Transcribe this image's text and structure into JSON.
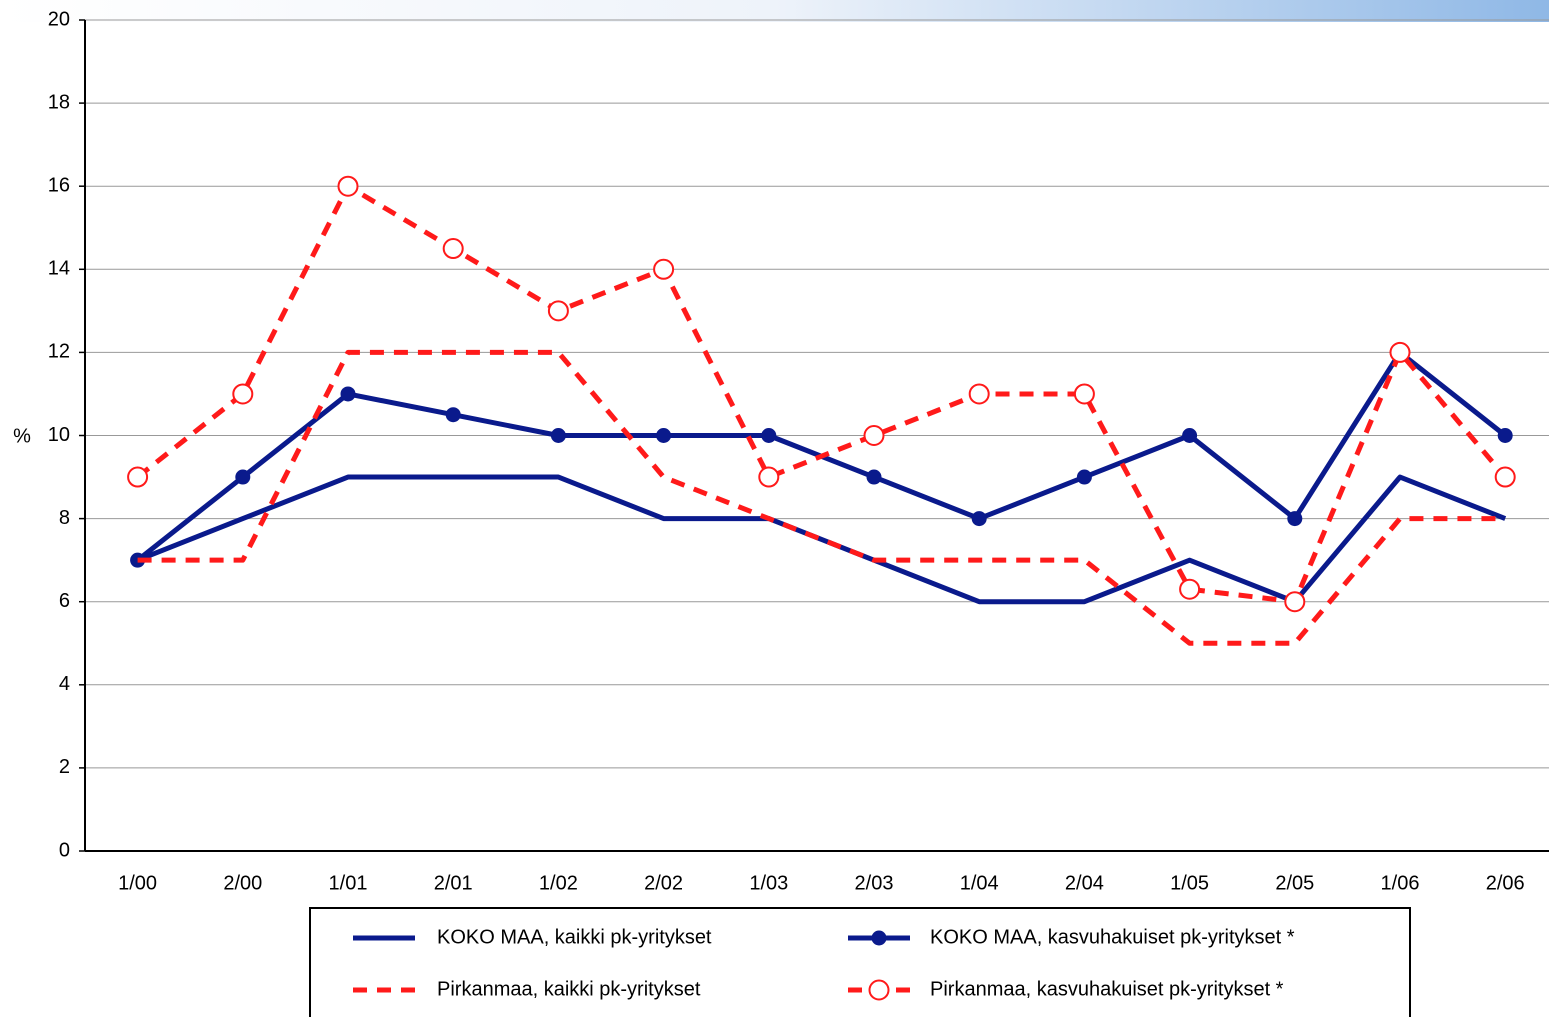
{
  "chart_data": {
    "type": "line",
    "ylabel": "%",
    "categories": [
      "1/00",
      "2/00",
      "1/01",
      "2/01",
      "1/02",
      "2/02",
      "1/03",
      "2/03",
      "1/04",
      "2/04",
      "1/05",
      "2/05",
      "1/06",
      "2/06"
    ],
    "series": [
      {
        "name": "KOKO MAA, kaikki pk-yritykset",
        "color": "#0a1a8c",
        "dash": false,
        "marker": "none",
        "values": [
          7,
          8,
          9,
          9,
          9,
          8,
          8,
          7,
          6,
          6,
          7,
          6,
          9,
          8
        ]
      },
      {
        "name": "KOKO MAA, kasvuhakuiset pk-yritykset *",
        "color": "#0a1a8c",
        "dash": false,
        "marker": "filled",
        "values": [
          7,
          9,
          11,
          10.5,
          10,
          10,
          10,
          9,
          8,
          9,
          10,
          8,
          12,
          10
        ]
      },
      {
        "name": "Pirkanmaa, kaikki pk-yritykset",
        "color": "#ff1a1a",
        "dash": true,
        "marker": "none",
        "values": [
          7,
          7,
          12,
          12,
          12,
          9,
          8,
          7,
          7,
          7,
          5,
          5,
          8,
          8
        ]
      },
      {
        "name": "Pirkanmaa, kasvuhakuiset pk-yritykset *",
        "color": "#ff1a1a",
        "dash": true,
        "marker": "open",
        "values": [
          9,
          11,
          16,
          14.5,
          13,
          14,
          9,
          10,
          11,
          11,
          6.3,
          6,
          12,
          9
        ]
      }
    ],
    "ylim": [
      0,
      20
    ],
    "yticks": [
      0,
      2,
      4,
      6,
      8,
      10,
      12,
      14,
      16,
      18,
      20
    ],
    "grid": true
  }
}
